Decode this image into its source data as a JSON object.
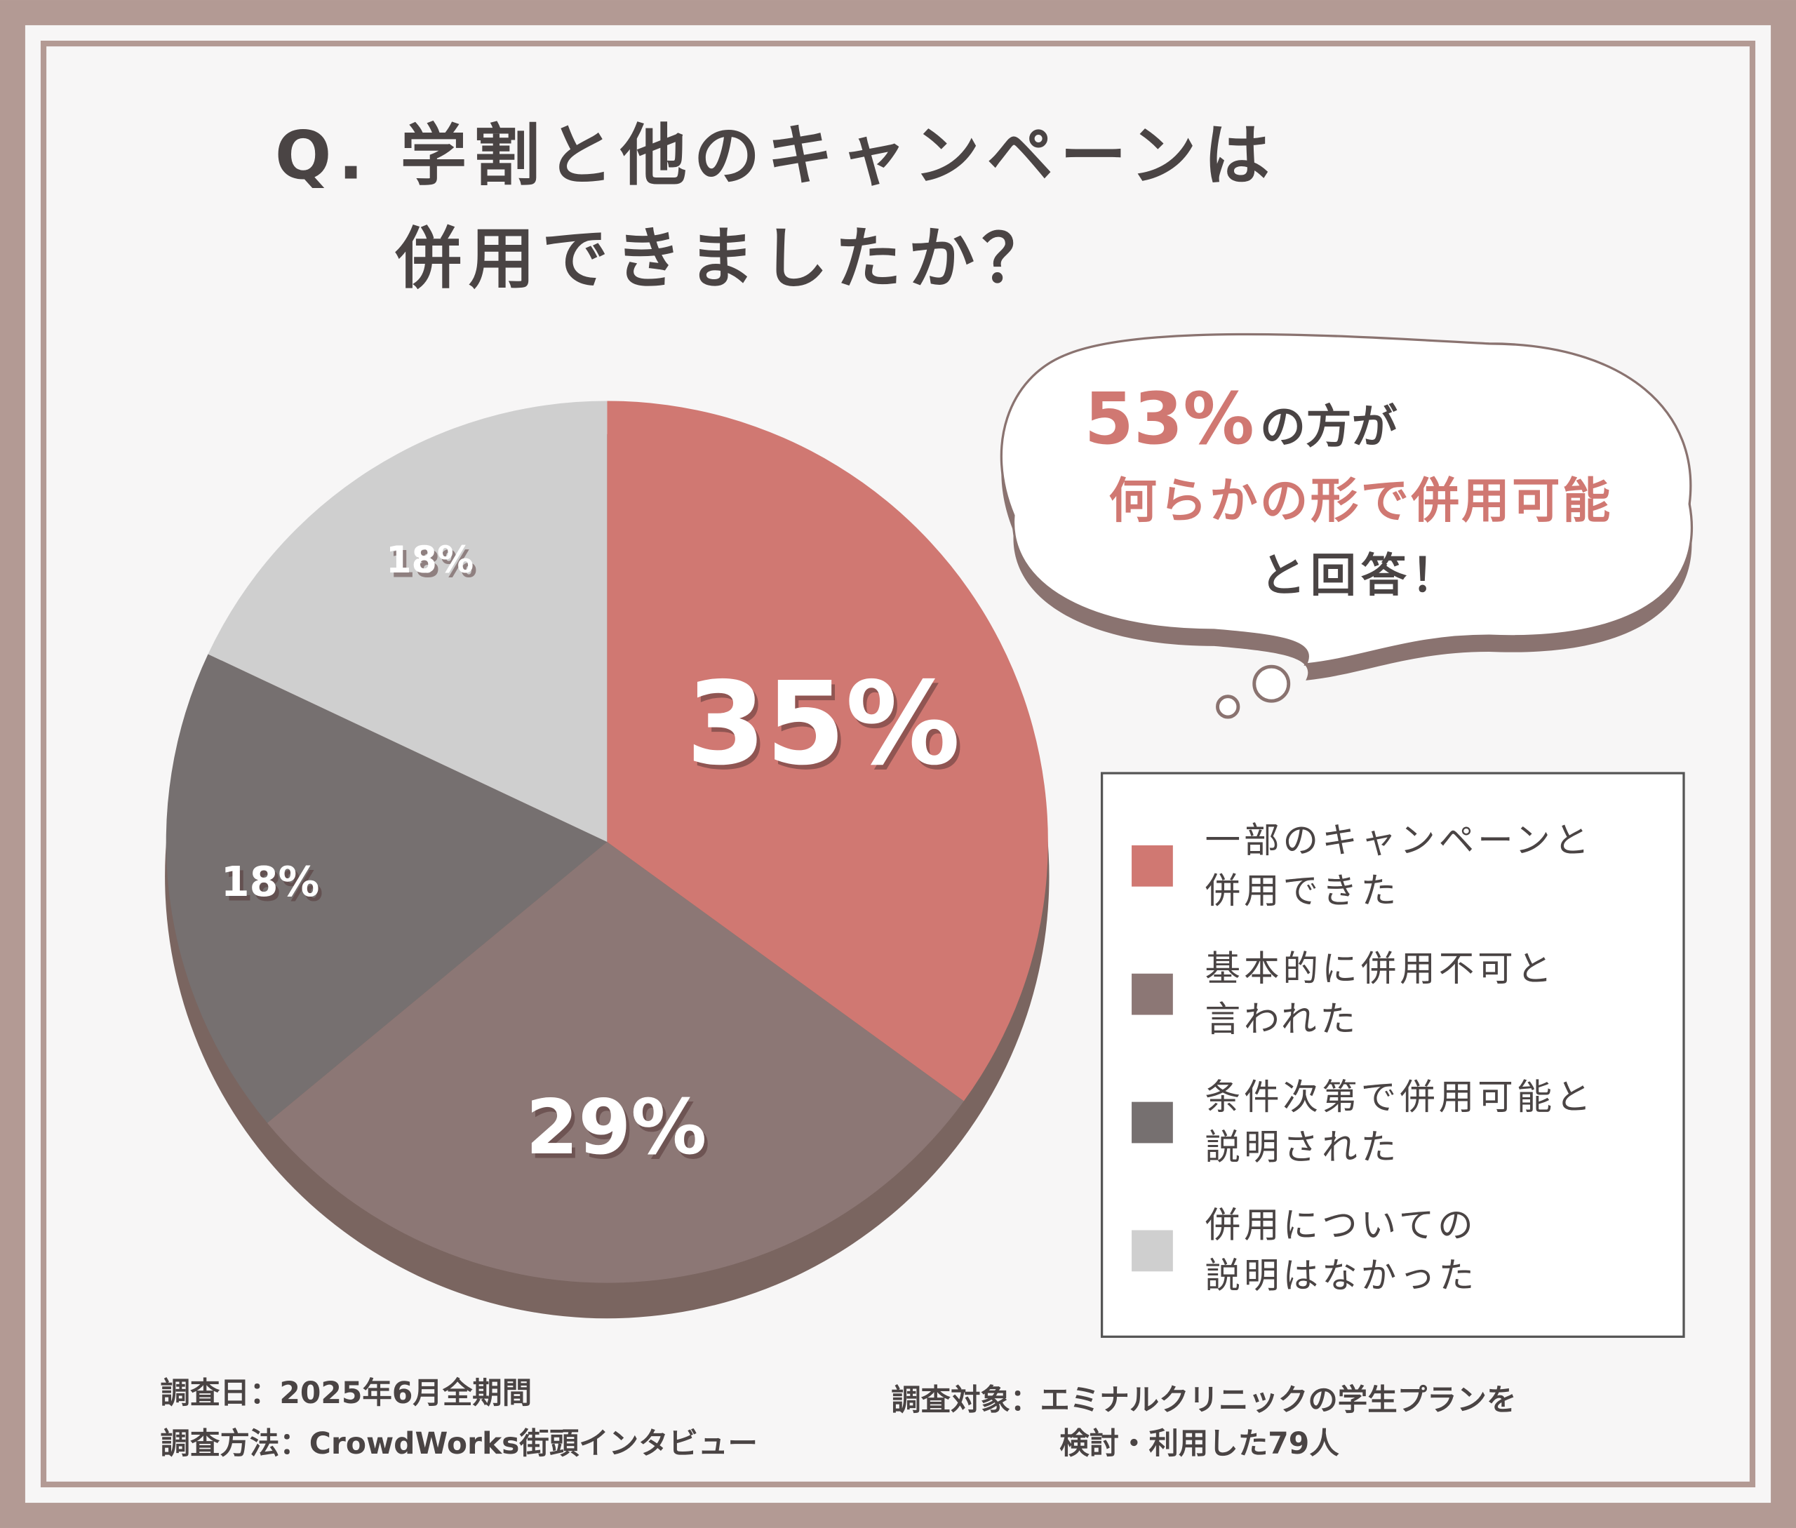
{
  "chart_data": {
    "type": "pie",
    "title": [
      "Q. 学割と他のキャンペーンは",
      "併用できましたか？"
    ],
    "categories": [
      [
        "一部のキャンペーンと",
        "併用できた"
      ],
      [
        "基本的に併用不可と",
        "言われた"
      ],
      [
        "条件次第で併用可能と",
        "説明された"
      ],
      [
        "併用についての",
        "説明はなかった"
      ]
    ],
    "values": [
      35,
      29,
      18,
      18
    ],
    "value_labels": [
      "35%",
      "29%",
      "18%",
      "18%"
    ],
    "colors": [
      "#d07872",
      "#8c7775",
      "#767070",
      "#cfcfcf"
    ]
  },
  "callout": {
    "highlight": "53%",
    "line1": "の方が",
    "line2": "何らかの形で併用可能",
    "line3": "と回答！"
  },
  "footer": {
    "date": "調査日：2025年6月全期間",
    "method": "調査方法：CrowdWorks街頭インタビュー",
    "target": [
      "調査対象：エミナルクリニックの学生プランを",
      "検討・利用した79人"
    ]
  }
}
